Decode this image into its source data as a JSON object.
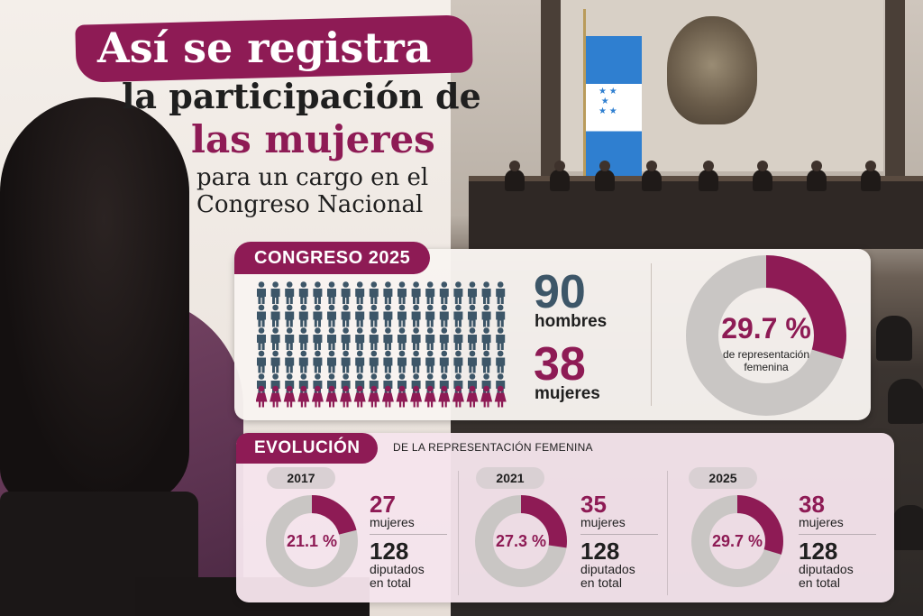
{
  "title": {
    "line1": "Así se registra",
    "line2": "la participación de",
    "line3": "las mujeres",
    "line4a": "para un cargo en el",
    "line4b": "Congreso Nacional"
  },
  "congreso": {
    "tag": "CONGRESO 2025",
    "men_count": "90",
    "men_label": "hombres",
    "women_count": "38",
    "women_label": "mujeres",
    "percent": "29.7 %",
    "percent_label_1": "de representación",
    "percent_label_2": "femenina",
    "fraction": 0.297
  },
  "evolucion": {
    "tag": "EVOLUCIÓN",
    "subtitle": "DE LA REPRESENTACIÓN FEMENINA",
    "years": [
      {
        "year": "2017",
        "percent": "21.1 %",
        "fraction": 0.211,
        "women": "27",
        "women_label": "mujeres",
        "total": "128",
        "total_label_1": "diputados",
        "total_label_2": "en total"
      },
      {
        "year": "2021",
        "percent": "27.3 %",
        "fraction": 0.273,
        "women": "35",
        "women_label": "mujeres",
        "total": "128",
        "total_label_1": "diputados",
        "total_label_2": "en total"
      },
      {
        "year": "2025",
        "percent": "29.7 %",
        "fraction": 0.297,
        "women": "38",
        "women_label": "mujeres",
        "total": "128",
        "total_label_1": "diputados",
        "total_label_2": "en total"
      }
    ]
  },
  "colors": {
    "accent": "#8e1b55",
    "men": "#3d5668",
    "ring_gray": "#c9c6c4"
  },
  "icons": {
    "man": "man-figure-icon",
    "woman": "woman-figure-icon"
  }
}
